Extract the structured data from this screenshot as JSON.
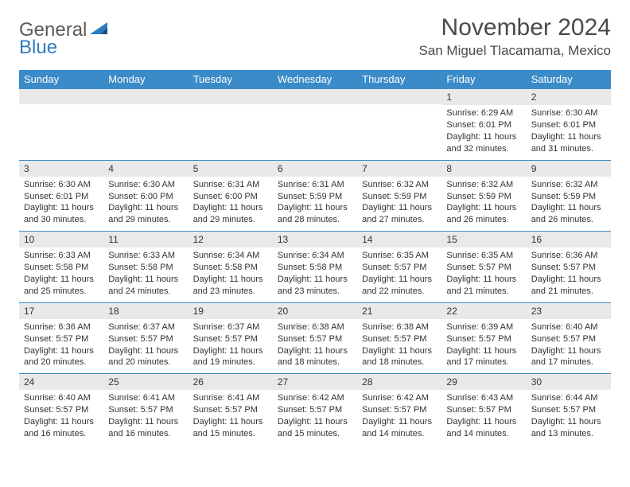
{
  "logo": {
    "general": "General",
    "blue": "Blue"
  },
  "header": {
    "month_title": "November 2024",
    "location": "San Miguel Tlacamama, Mexico"
  },
  "colors": {
    "header_bg": "#3b8bc9",
    "header_text": "#ffffff",
    "row_border": "#3b8bc9",
    "daynum_bg": "#e9e9e9",
    "body_text": "#333333",
    "logo_gray": "#5a5a5a",
    "logo_blue": "#2d7bbd",
    "page_bg": "#ffffff"
  },
  "typography": {
    "month_title_fontsize": 30,
    "location_fontsize": 17,
    "weekday_fontsize": 13,
    "daynum_fontsize": 12,
    "body_fontsize": 11
  },
  "weekdays": [
    "Sunday",
    "Monday",
    "Tuesday",
    "Wednesday",
    "Thursday",
    "Friday",
    "Saturday"
  ],
  "labels": {
    "sunrise_prefix": "Sunrise: ",
    "sunset_prefix": "Sunset: ",
    "daylight_prefix": "Daylight: ",
    "and_word": "and ",
    "minutes_suffix": " minutes."
  },
  "weeks": [
    [
      {
        "empty": true
      },
      {
        "empty": true
      },
      {
        "empty": true
      },
      {
        "empty": true
      },
      {
        "empty": true
      },
      {
        "day": "1",
        "sunrise": "6:29 AM",
        "sunset": "6:01 PM",
        "daylight_h": "11 hours",
        "daylight_m": "32"
      },
      {
        "day": "2",
        "sunrise": "6:30 AM",
        "sunset": "6:01 PM",
        "daylight_h": "11 hours",
        "daylight_m": "31"
      }
    ],
    [
      {
        "day": "3",
        "sunrise": "6:30 AM",
        "sunset": "6:01 PM",
        "daylight_h": "11 hours",
        "daylight_m": "30"
      },
      {
        "day": "4",
        "sunrise": "6:30 AM",
        "sunset": "6:00 PM",
        "daylight_h": "11 hours",
        "daylight_m": "29"
      },
      {
        "day": "5",
        "sunrise": "6:31 AM",
        "sunset": "6:00 PM",
        "daylight_h": "11 hours",
        "daylight_m": "29"
      },
      {
        "day": "6",
        "sunrise": "6:31 AM",
        "sunset": "5:59 PM",
        "daylight_h": "11 hours",
        "daylight_m": "28"
      },
      {
        "day": "7",
        "sunrise": "6:32 AM",
        "sunset": "5:59 PM",
        "daylight_h": "11 hours",
        "daylight_m": "27"
      },
      {
        "day": "8",
        "sunrise": "6:32 AM",
        "sunset": "5:59 PM",
        "daylight_h": "11 hours",
        "daylight_m": "26"
      },
      {
        "day": "9",
        "sunrise": "6:32 AM",
        "sunset": "5:59 PM",
        "daylight_h": "11 hours",
        "daylight_m": "26"
      }
    ],
    [
      {
        "day": "10",
        "sunrise": "6:33 AM",
        "sunset": "5:58 PM",
        "daylight_h": "11 hours",
        "daylight_m": "25"
      },
      {
        "day": "11",
        "sunrise": "6:33 AM",
        "sunset": "5:58 PM",
        "daylight_h": "11 hours",
        "daylight_m": "24"
      },
      {
        "day": "12",
        "sunrise": "6:34 AM",
        "sunset": "5:58 PM",
        "daylight_h": "11 hours",
        "daylight_m": "23"
      },
      {
        "day": "13",
        "sunrise": "6:34 AM",
        "sunset": "5:58 PM",
        "daylight_h": "11 hours",
        "daylight_m": "23"
      },
      {
        "day": "14",
        "sunrise": "6:35 AM",
        "sunset": "5:57 PM",
        "daylight_h": "11 hours",
        "daylight_m": "22"
      },
      {
        "day": "15",
        "sunrise": "6:35 AM",
        "sunset": "5:57 PM",
        "daylight_h": "11 hours",
        "daylight_m": "21"
      },
      {
        "day": "16",
        "sunrise": "6:36 AM",
        "sunset": "5:57 PM",
        "daylight_h": "11 hours",
        "daylight_m": "21"
      }
    ],
    [
      {
        "day": "17",
        "sunrise": "6:36 AM",
        "sunset": "5:57 PM",
        "daylight_h": "11 hours",
        "daylight_m": "20"
      },
      {
        "day": "18",
        "sunrise": "6:37 AM",
        "sunset": "5:57 PM",
        "daylight_h": "11 hours",
        "daylight_m": "20"
      },
      {
        "day": "19",
        "sunrise": "6:37 AM",
        "sunset": "5:57 PM",
        "daylight_h": "11 hours",
        "daylight_m": "19"
      },
      {
        "day": "20",
        "sunrise": "6:38 AM",
        "sunset": "5:57 PM",
        "daylight_h": "11 hours",
        "daylight_m": "18"
      },
      {
        "day": "21",
        "sunrise": "6:38 AM",
        "sunset": "5:57 PM",
        "daylight_h": "11 hours",
        "daylight_m": "18"
      },
      {
        "day": "22",
        "sunrise": "6:39 AM",
        "sunset": "5:57 PM",
        "daylight_h": "11 hours",
        "daylight_m": "17"
      },
      {
        "day": "23",
        "sunrise": "6:40 AM",
        "sunset": "5:57 PM",
        "daylight_h": "11 hours",
        "daylight_m": "17"
      }
    ],
    [
      {
        "day": "24",
        "sunrise": "6:40 AM",
        "sunset": "5:57 PM",
        "daylight_h": "11 hours",
        "daylight_m": "16"
      },
      {
        "day": "25",
        "sunrise": "6:41 AM",
        "sunset": "5:57 PM",
        "daylight_h": "11 hours",
        "daylight_m": "16"
      },
      {
        "day": "26",
        "sunrise": "6:41 AM",
        "sunset": "5:57 PM",
        "daylight_h": "11 hours",
        "daylight_m": "15"
      },
      {
        "day": "27",
        "sunrise": "6:42 AM",
        "sunset": "5:57 PM",
        "daylight_h": "11 hours",
        "daylight_m": "15"
      },
      {
        "day": "28",
        "sunrise": "6:42 AM",
        "sunset": "5:57 PM",
        "daylight_h": "11 hours",
        "daylight_m": "14"
      },
      {
        "day": "29",
        "sunrise": "6:43 AM",
        "sunset": "5:57 PM",
        "daylight_h": "11 hours",
        "daylight_m": "14"
      },
      {
        "day": "30",
        "sunrise": "6:44 AM",
        "sunset": "5:57 PM",
        "daylight_h": "11 hours",
        "daylight_m": "13"
      }
    ]
  ]
}
